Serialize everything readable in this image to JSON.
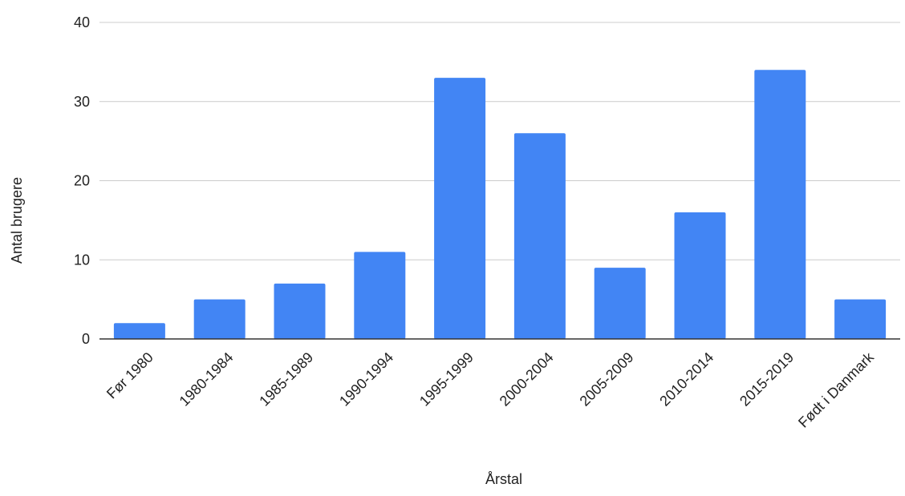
{
  "chart_data": {
    "type": "bar",
    "title": "",
    "xlabel": "Årstal",
    "ylabel": "Antal brugere",
    "categories": [
      "Før 1980",
      "1980-1984",
      "1985-1989",
      "1990-1994",
      "1995-1999",
      "2000-2004",
      "2005-2009",
      "2010-2014",
      "2015-2019",
      "Født i Danmark"
    ],
    "values": [
      2,
      5,
      7,
      11,
      33,
      26,
      9,
      16,
      34,
      5
    ],
    "ylim": [
      0,
      40
    ],
    "yticks": [
      0,
      10,
      20,
      30,
      40
    ],
    "grid": true,
    "legend": "none",
    "colors": {
      "bar": "#4285f4",
      "grid": "#cccccc",
      "baseline": "#333333"
    }
  }
}
